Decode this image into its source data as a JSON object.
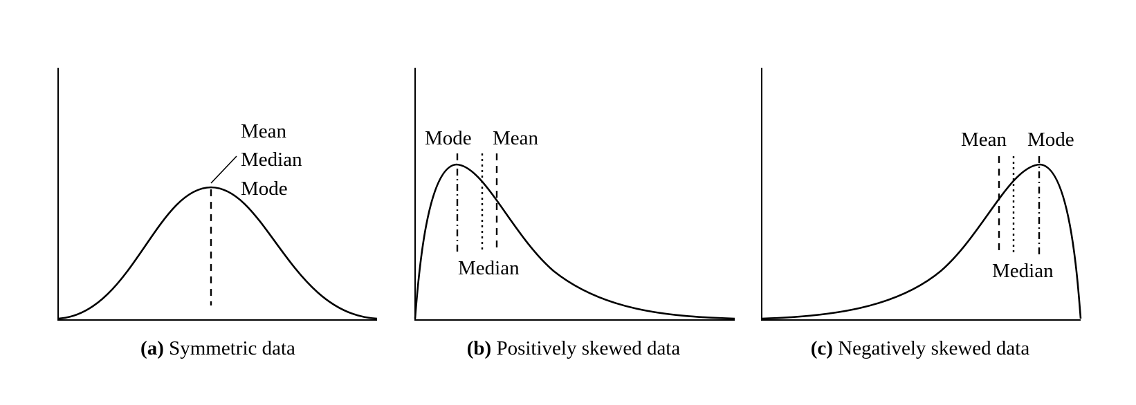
{
  "panels": [
    {
      "id": "a",
      "caption_letter": "(a)",
      "caption_text": " Symmetric data",
      "labels": {
        "mean": "Mean",
        "median": "Median",
        "mode": "Mode"
      }
    },
    {
      "id": "b",
      "caption_letter": "(b)",
      "caption_text": " Positively skewed data",
      "labels": {
        "mode": "Mode",
        "mean": "Mean",
        "median": "Median"
      }
    },
    {
      "id": "c",
      "caption_letter": "(c)",
      "caption_text": " Negatively skewed data",
      "labels": {
        "mean": "Mean",
        "mode": "Mode",
        "median": "Median"
      }
    }
  ]
}
